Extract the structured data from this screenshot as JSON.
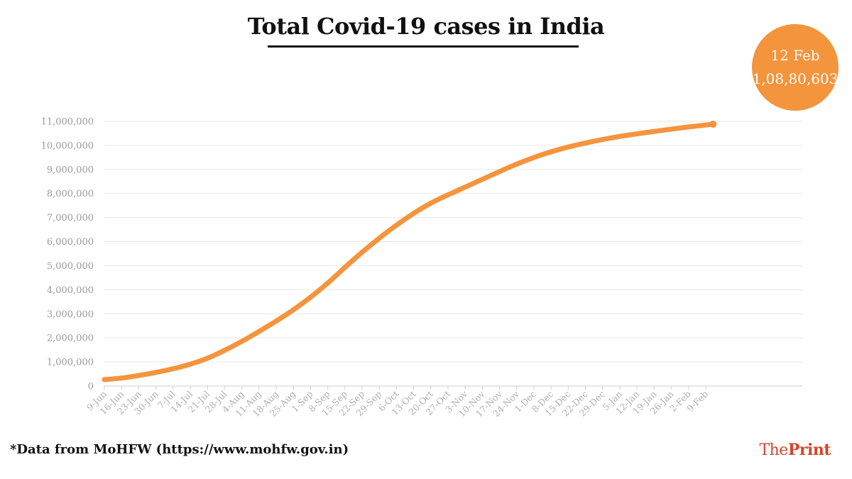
{
  "chart_data": {
    "type": "line",
    "title": "Total Covid-19 cases in India",
    "xlabel": "",
    "ylabel": "",
    "ylim": [
      0,
      11000000
    ],
    "yticks": [
      0,
      1000000,
      2000000,
      3000000,
      4000000,
      5000000,
      6000000,
      7000000,
      8000000,
      9000000,
      10000000,
      11000000
    ],
    "ytick_labels": [
      "0",
      "1,000,000",
      "2,000,000",
      "3,000,000",
      "4,000,000",
      "5,000,000",
      "6,000,000",
      "7,000,000",
      "8,000,000",
      "9,000,000",
      "10,000,000",
      "11,000,000"
    ],
    "grid": true,
    "categories": [
      "9-Jun",
      "16-Jun",
      "23-Jun",
      "30-Jun",
      "7-Jul",
      "14-Jul",
      "21-Jul",
      "28-Jul",
      "4-Aug",
      "11-Aug",
      "18-Aug",
      "25-Aug",
      "1-Sep",
      "8-Sep",
      "15-Sep",
      "22-Sep",
      "29-Sep",
      "6-Oct",
      "13-Oct",
      "20-Oct",
      "27-Oct",
      "3-Nov",
      "10-Nov",
      "17-Nov",
      "24-Nov",
      "1-Dec",
      "8-Dec",
      "15-Dec",
      "22-Dec",
      "29-Dec",
      "5-Jan",
      "12-Jan",
      "19-Jan",
      "26-Jan",
      "2-Feb",
      "9-Feb"
    ],
    "series": [
      {
        "values": [
          267000,
          333000,
          440000,
          567000,
          720000,
          907000,
          1155000,
          1483000,
          1856000,
          2268000,
          2702000,
          3167000,
          3691000,
          4280000,
          4930000,
          5560000,
          6145000,
          6685000,
          7175000,
          7597000,
          7946000,
          8267000,
          8592000,
          8912000,
          9223000,
          9499000,
          9735000,
          9932000,
          10099000,
          10245000,
          10374000,
          10480000,
          10581000,
          10677000,
          10766000,
          10847000
        ],
        "color": "#f4943d"
      }
    ],
    "end_point": {
      "x": "12 Feb",
      "y": 10880603
    },
    "annotation": {
      "date": "12 Feb",
      "value": "1,08,80,603",
      "color": "#f4943d"
    }
  },
  "footer": {
    "source_note": "*Data from MoHFW (https://www.mohfw.gov.in)",
    "brand_the": "The",
    "brand_print": "Print",
    "brand_color": "#d2462c"
  }
}
